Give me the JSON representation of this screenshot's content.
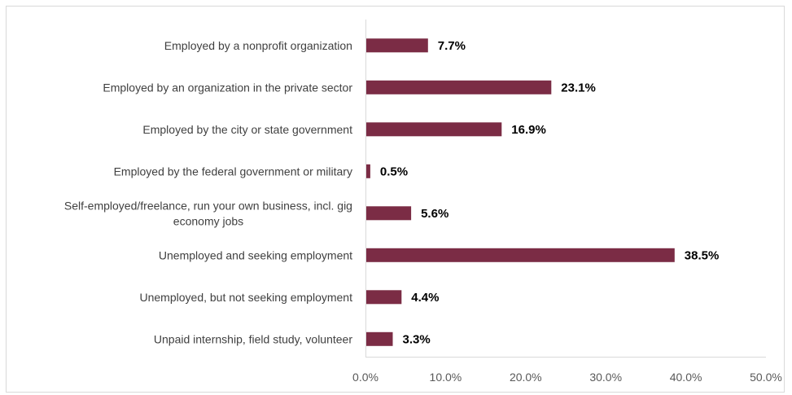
{
  "chart_data": {
    "type": "bar",
    "orientation": "horizontal",
    "categories": [
      "Employed by a nonprofit organization",
      "Employed by an organization in the private sector",
      "Employed by the city or state government",
      "Employed by the federal government or military",
      "Self-employed/freelance, run your own business, incl. gig economy jobs",
      "Unemployed and seeking employment",
      "Unemployed, but not seeking employment",
      "Unpaid internship, field study, volunteer"
    ],
    "category_lines": [
      [
        "Employed by a nonprofit organization"
      ],
      [
        "Employed by an organization in the private sector"
      ],
      [
        "Employed by the city or state government"
      ],
      [
        "Employed by the federal government or military"
      ],
      [
        "Self-employed/freelance, run your own business, incl. gig",
        "economy jobs"
      ],
      [
        "Unemployed and seeking employment"
      ],
      [
        "Unemployed, but not seeking employment"
      ],
      [
        "Unpaid internship, field study, volunteer"
      ]
    ],
    "values": [
      7.7,
      23.1,
      16.9,
      0.5,
      5.6,
      38.5,
      4.4,
      3.3
    ],
    "value_labels": [
      "7.7%",
      "23.1%",
      "16.9%",
      "0.5%",
      "5.6%",
      "38.5%",
      "4.4%",
      "3.3%"
    ],
    "xlim": [
      0,
      50
    ],
    "xticks": [
      0,
      10,
      20,
      30,
      40,
      50
    ],
    "xtick_labels": [
      "0.0%",
      "10.0%",
      "20.0%",
      "30.0%",
      "40.0%",
      "50.0%"
    ],
    "grid": false,
    "legend": "none",
    "bar_color": "#7b2c45",
    "axis_color": "#d9d9d9"
  }
}
